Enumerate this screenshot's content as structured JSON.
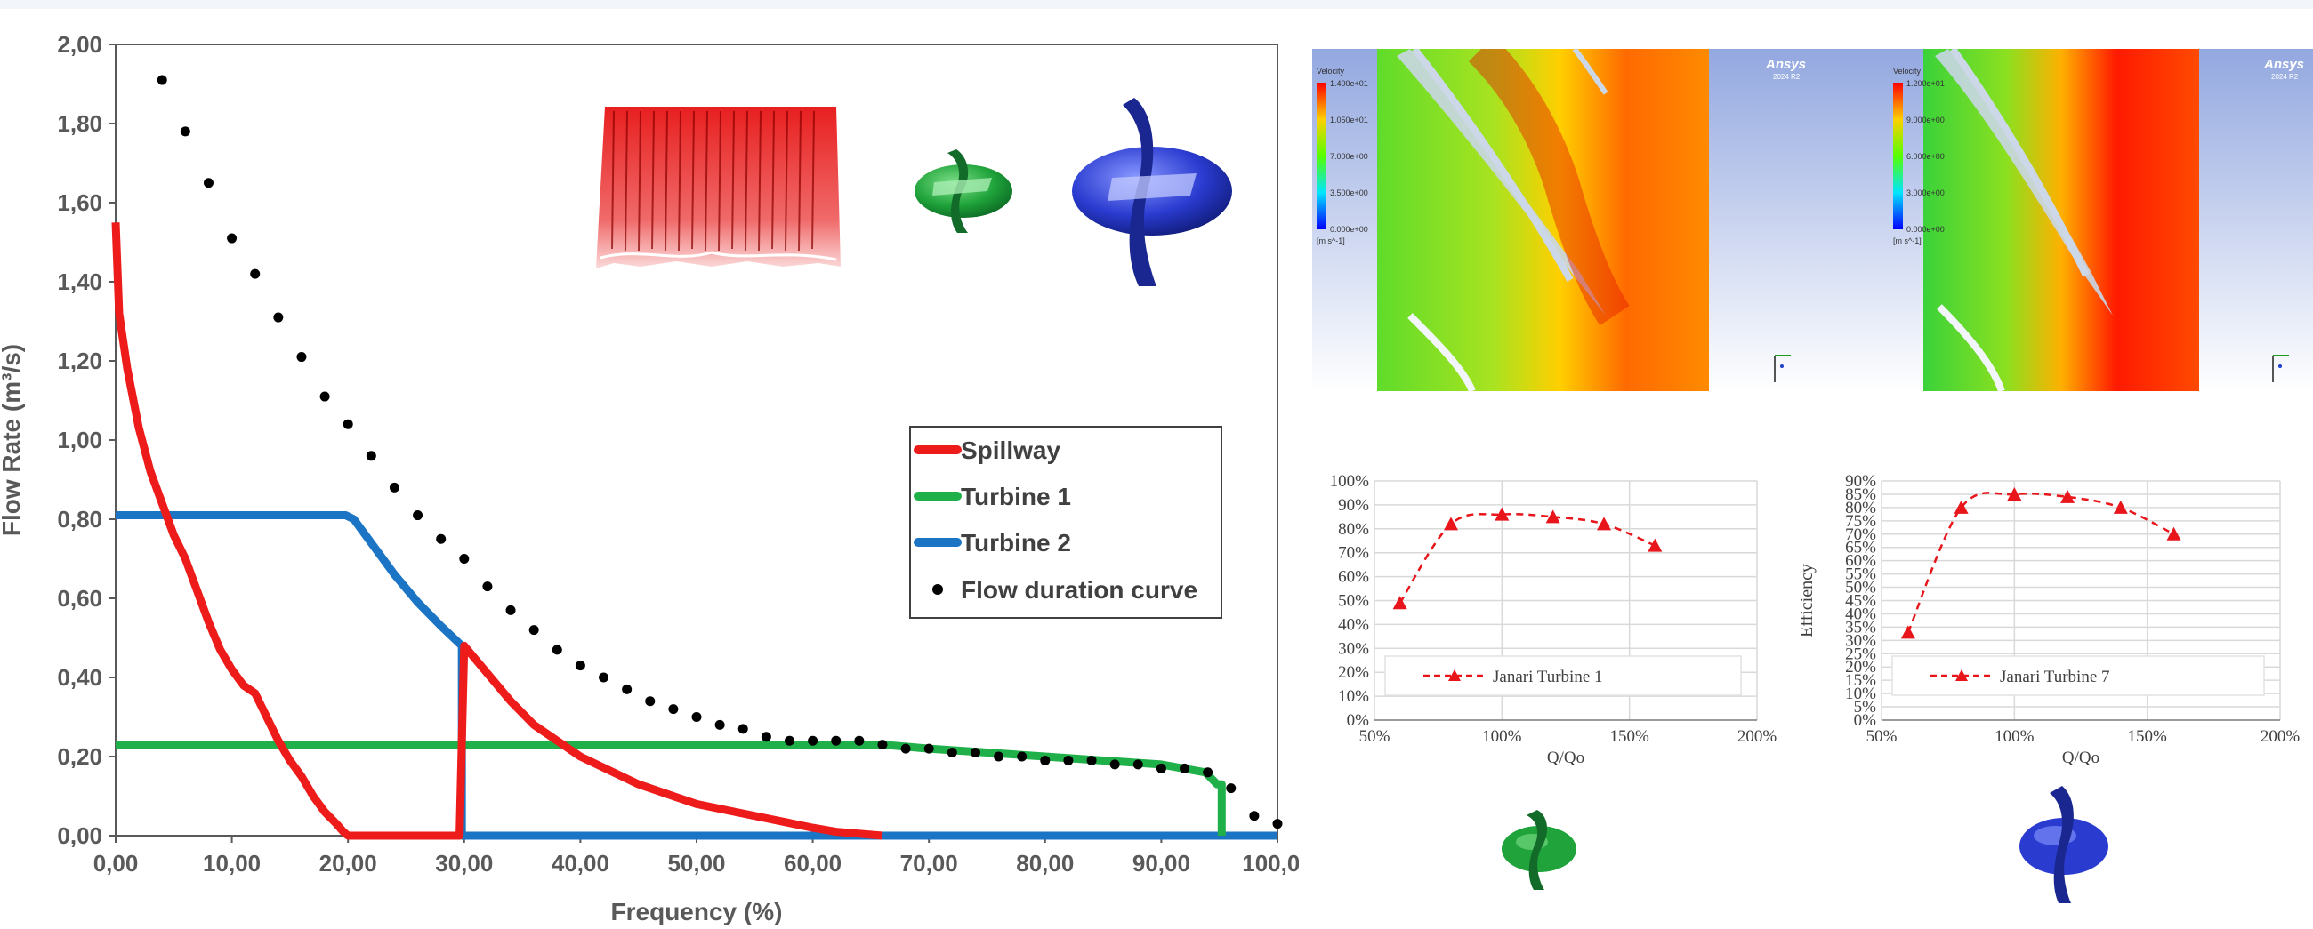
{
  "colors": {
    "spillway": "#ee1b1b",
    "turbine1": "#1fb04a",
    "turbine2": "#1b75c4",
    "fdc": "#000000",
    "efficiency": "#e8151b",
    "gridline": "#d9d9d9",
    "cfd_bg": "#b9c6e6"
  },
  "icons": {
    "spillway": "spillway-gate-icon",
    "turbine_small": "green-turbine-runner-icon",
    "turbine_large": "blue-turbine-runner-icon"
  },
  "chart_data": [
    {
      "type": "line",
      "xlabel": "Frequency (%)",
      "ylabel": "Flow Rate (m³/s)",
      "xlim": [
        0,
        100
      ],
      "ylim": [
        0,
        2
      ],
      "xticks": [
        "0,00",
        "10,00",
        "20,00",
        "30,00",
        "40,00",
        "50,00",
        "60,00",
        "70,00",
        "80,00",
        "90,00",
        "100,00"
      ],
      "yticks": [
        "0,00",
        "0,20",
        "0,40",
        "0,60",
        "0,80",
        "1,00",
        "1,20",
        "1,40",
        "1,60",
        "1,80",
        "2,00"
      ],
      "grid": false,
      "legend_position": "right",
      "series": [
        {
          "name": "Spillway",
          "kind": "line",
          "x": [
            0,
            0.3,
            1,
            2,
            3,
            4,
            5,
            6,
            7,
            8,
            9,
            10,
            11,
            12,
            13,
            14,
            15,
            16,
            17,
            18,
            19,
            19.6,
            20,
            29.6,
            30,
            32,
            34,
            36,
            38,
            40,
            45,
            50,
            55,
            60,
            62,
            66
          ],
          "y": [
            1.55,
            1.32,
            1.18,
            1.03,
            0.92,
            0.84,
            0.76,
            0.7,
            0.62,
            0.54,
            0.47,
            0.42,
            0.38,
            0.36,
            0.3,
            0.24,
            0.19,
            0.15,
            0.1,
            0.06,
            0.03,
            0.01,
            0.0,
            0.0,
            0.48,
            0.41,
            0.34,
            0.28,
            0.24,
            0.2,
            0.13,
            0.08,
            0.05,
            0.02,
            0.01,
            0.0
          ]
        },
        {
          "name": "Turbine 1",
          "kind": "line",
          "x": [
            0,
            66,
            70,
            75,
            80,
            85,
            90,
            93.8,
            94.8,
            95.2,
            95.2
          ],
          "y": [
            0.23,
            0.23,
            0.22,
            0.21,
            0.2,
            0.19,
            0.18,
            0.16,
            0.13,
            0.13,
            0.0
          ]
        },
        {
          "name": "Turbine 2",
          "kind": "line",
          "x": [
            0,
            19.8,
            20.5,
            22,
            24,
            26,
            28,
            29.8,
            29.8,
            29.8,
            100
          ],
          "y": [
            0.81,
            0.81,
            0.8,
            0.74,
            0.66,
            0.59,
            0.53,
            0.48,
            0.0,
            0.0,
            0.0
          ]
        },
        {
          "name": "Flow duration curve",
          "kind": "scatter",
          "x": [
            4,
            6,
            8,
            10,
            12,
            14,
            16,
            18,
            20,
            22,
            24,
            26,
            28,
            30,
            32,
            34,
            36,
            38,
            40,
            42,
            44,
            46,
            48,
            50,
            52,
            54,
            56,
            58,
            60,
            62,
            64,
            66,
            68,
            70,
            72,
            74,
            76,
            78,
            80,
            82,
            84,
            86,
            88,
            90,
            92,
            94,
            96,
            98,
            100
          ],
          "y": [
            1.91,
            1.78,
            1.65,
            1.51,
            1.42,
            1.31,
            1.21,
            1.11,
            1.04,
            0.96,
            0.88,
            0.81,
            0.75,
            0.7,
            0.63,
            0.57,
            0.52,
            0.47,
            0.43,
            0.4,
            0.37,
            0.34,
            0.32,
            0.3,
            0.28,
            0.27,
            0.25,
            0.24,
            0.24,
            0.24,
            0.24,
            0.23,
            0.22,
            0.22,
            0.21,
            0.21,
            0.2,
            0.2,
            0.19,
            0.19,
            0.19,
            0.18,
            0.18,
            0.17,
            0.17,
            0.16,
            0.12,
            0.05,
            0.03
          ]
        }
      ]
    },
    {
      "type": "line",
      "xlabel": "Q/Qo",
      "ylabel": "",
      "xticks": [
        "50%",
        "100%",
        "150%",
        "200%"
      ],
      "yticks": [
        "0%",
        "10%",
        "20%",
        "30%",
        "40%",
        "50%",
        "60%",
        "70%",
        "80%",
        "90%",
        "100%"
      ],
      "xlim": [
        50,
        200
      ],
      "ylim": [
        0,
        100
      ],
      "grid": true,
      "legend_position": "bottom",
      "series": [
        {
          "name": "Janari Turbine 1",
          "x": [
            60,
            80,
            100,
            120,
            140,
            160
          ],
          "y": [
            49,
            82,
            86,
            85,
            82,
            73
          ]
        }
      ]
    },
    {
      "type": "line",
      "xlabel": "Q/Qo",
      "ylabel": "Efficiency",
      "xticks": [
        "50%",
        "100%",
        "150%",
        "200%"
      ],
      "yticks": [
        "0%",
        "5%",
        "10%",
        "15%",
        "20%",
        "25%",
        "30%",
        "35%",
        "40%",
        "45%",
        "50%",
        "55%",
        "60%",
        "65%",
        "70%",
        "75%",
        "80%",
        "85%",
        "90%"
      ],
      "xlim": [
        50,
        200
      ],
      "ylim": [
        0,
        90
      ],
      "grid": true,
      "legend_position": "bottom",
      "series": [
        {
          "name": "Janari Turbine 7",
          "x": [
            60,
            80,
            100,
            120,
            140,
            160
          ],
          "y": [
            33,
            80,
            85,
            84,
            80,
            70
          ]
        }
      ]
    }
  ],
  "cfd": [
    {
      "brand": "Ansys",
      "version": "2024 R2",
      "legend_title": "Velocity",
      "legend_ticks": [
        "1.400e+01",
        "1.050e+01",
        "7.000e+00",
        "3.500e+00",
        "0.000e+00"
      ],
      "units": "[m s^-1]"
    },
    {
      "brand": "Ansys",
      "version": "2024 R2",
      "legend_title": "Velocity",
      "legend_ticks": [
        "1.200e+01",
        "9.000e+00",
        "6.000e+00",
        "3.000e+00",
        "0.000e+00"
      ],
      "units": "[m s^-1]"
    }
  ]
}
